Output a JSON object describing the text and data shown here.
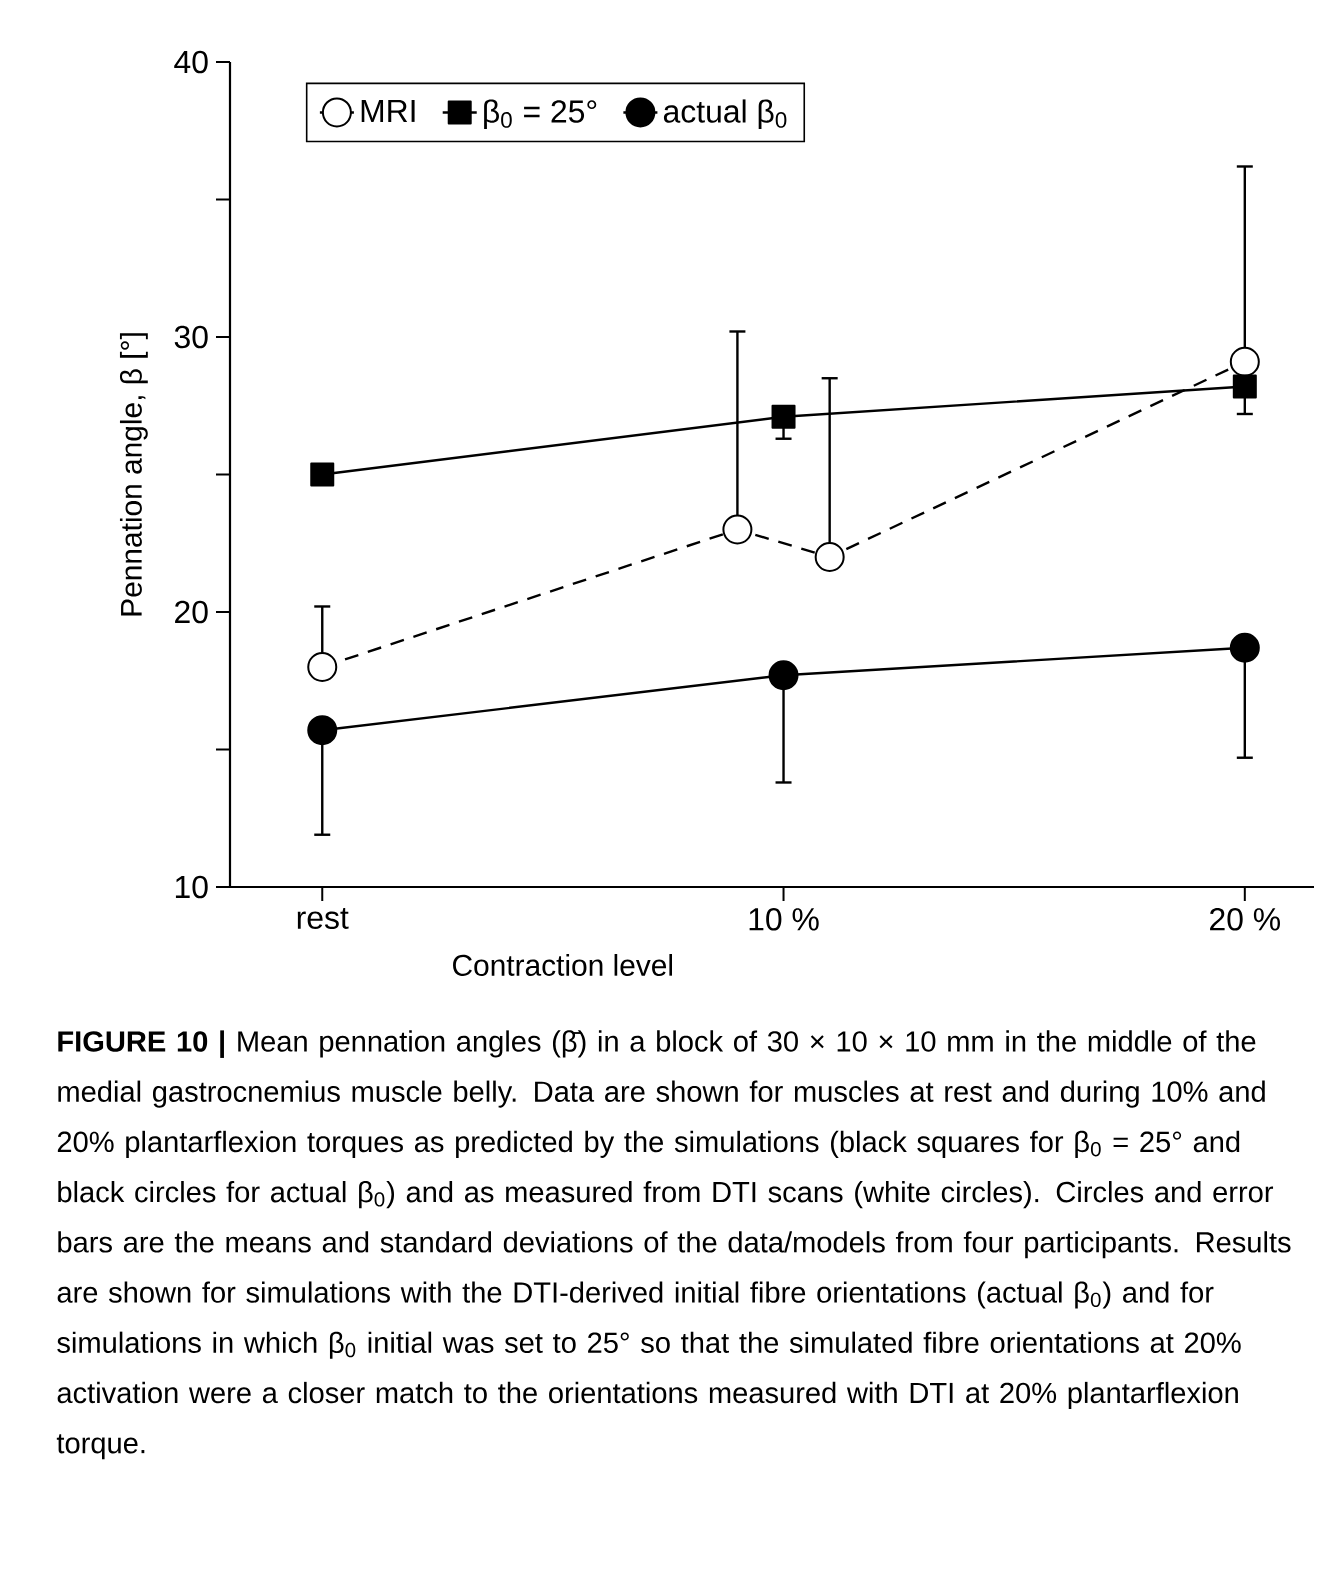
{
  "chart_data": {
    "type": "line",
    "xlabel": "Contraction level",
    "ylabel": "Pennation angle, β [°]",
    "xlim": [
      -2,
      21.5
    ],
    "ylim": [
      10,
      40
    ],
    "xticks": [
      {
        "value": 0,
        "label": "rest"
      },
      {
        "value": 10,
        "label": "10 %"
      },
      {
        "value": 20,
        "label": "20 %"
      }
    ],
    "yticks": [
      10,
      {
        "value": 15,
        "label": null
      },
      20,
      {
        "value": 25,
        "label": null
      },
      30,
      {
        "value": 35,
        "label": null
      },
      40
    ],
    "grid": false,
    "legend": "top left",
    "series": [
      {
        "name": "MRI",
        "color": "#ffffff",
        "marker": "circle",
        "line_style": "dashed",
        "x": [
          0,
          9,
          11,
          20
        ],
        "values": [
          18.0,
          23.0,
          22.0,
          29.1
        ],
        "errors": [
          [
            18.0,
            20.2
          ],
          [
            23.0,
            30.2
          ],
          [
            22.0,
            28.5
          ],
          [
            29.1,
            36.2
          ]
        ]
      },
      {
        "name": "β$_{0}$ = 25°",
        "color": "#000000",
        "marker": "square",
        "line_style": "solid",
        "x": [
          0,
          10,
          20
        ],
        "values": [
          25.0,
          27.1,
          28.2
        ],
        "errors": [
          null,
          [
            26.3,
            27.1
          ],
          [
            27.2,
            28.2
          ]
        ]
      },
      {
        "name": "actual β$_{0}$",
        "color": "#000000",
        "marker": "circle",
        "line_style": "solid",
        "x": [
          0,
          10,
          20
        ],
        "values": [
          15.7,
          17.7,
          18.7
        ],
        "errors": [
          [
            11.9,
            15.7
          ],
          [
            13.8,
            17.7
          ],
          [
            14.7,
            18.7
          ]
        ]
      }
    ],
    "annotations": [
      "**FIGURE 10 |** Mean pennation angles (β̄) in a block of 30 × 10 × 10 mm in the middle of the medial gastrocnemius muscle belly. Data are shown for muscles at rest and during 10% and 20% plantarflexion torques as predicted by the simulations (black squares for β$_{0}$ = 25° and black circles for actual β$_{0}$) and as measured from DTI scans (white circles). Circles and error bars are the means and standard deviations of the data/models from four participants. Results are shown for simulations with the DTI-derived initial fibre orientations (actual β$_{0}$) and for simulations in which β$_{0}$ initial was set to 25° so that the simulated fibre orientations at 20% activation were a closer match to the orientations measured with DTI at 20% plantarflexion torque."
    ]
  }
}
